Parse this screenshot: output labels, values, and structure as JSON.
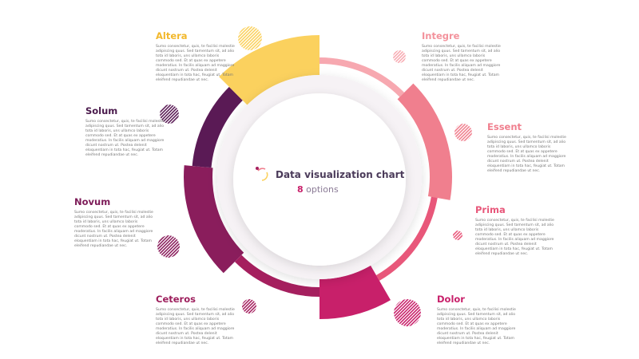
{
  "center": {
    "title": "Data visualization chart",
    "count": "8",
    "unit": "options"
  },
  "nodes": [
    {
      "label": "Altera",
      "text": "Sumo consectetur, quis, te facilisi molestie adipiscing quus. Sed tamentum sit, ad alio tota id laboris, uns ullamco laboris commodo sed. Et at quas ex appetere moderatius. In facilis aliquam ad maggiore dicunt nostrum ut. Postea delenit eloquentiam in tota hac, feugiat ut. Totam eleifend repudiandae ut nec."
    },
    {
      "label": "Integre",
      "text": "Sumo consectetur, quis, te facilisi molestie adipiscing quus. Sed tamentum sit, ad alio tota id laboris, uns ullamco laboris commodo sed. Et at quas ex appetere moderatius. In facilis aliquam ad maggiore dicunt nostrum ut. Postea delenit eloquentiam in tota hac, feugiat ut. Totam eleifend repudiandae ut nec."
    },
    {
      "label": "Solum",
      "text": "Sumo consectetur, quis, te facilisi molestie adipiscing quus. Sed tamentum sit, ad alio tota id laboris, uns ullamco laboris commodo sed. Et at quas ex appetere moderatius. In facilis aliquam ad maggiore dicunt nostrum ut. Postea delenit eloquentiam in tota hac, feugiat ut. Totam eleifend repudiandae ut nec."
    },
    {
      "label": "Essent",
      "text": "Sumo consectetur, quis, te facilisi molestie adipiscing quus. Sed tamentum sit, ad alio tota id laboris, uns ullamco laboris commodo sed. Et at quas ex appetere moderatius. In facilis aliquam ad maggiore dicunt nostrum ut. Postea delenit eloquentiam in tota hac, feugiat ut. Totam eleifend repudiandae ut nec."
    },
    {
      "label": "Novum",
      "text": "Sumo consectetur, quis, te facilisi molestie adipiscing quus. Sed tamentum sit, ad alio tota id laboris, uns ullamco laboris commodo sed. Et at quas ex appetere moderatius. In facilis aliquam ad maggiore dicunt nostrum ut. Postea delenit eloquentiam in tota hac, feugiat ut. Totam eleifend repudiandae ut nec."
    },
    {
      "label": "Prima",
      "text": "Sumo consectetur, quis, te facilisi molestie adipiscing quus. Sed tamentum sit, ad alio tota id laboris, uns ullamco laboris commodo sed. Et at quas ex appetere moderatius. In facilis aliquam ad maggiore dicunt nostrum ut. Postea delenit eloquentiam in tota hac, feugiat ut. Totam eleifend repudiandae ut nec."
    },
    {
      "label": "Ceteros",
      "text": "Sumo consectetur, quis, te facilisi molestie adipiscing quus. Sed tamentum sit, ad alio tota id laboris, uns ullamco laboris commodo sed. Et at quas ex appetere moderatius. In facilis aliquam ad maggiore dicunt nostrum ut. Postea delenit eloquentiam in tota hac, feugiat ut. Totam eleifend repudiandae ut nec."
    },
    {
      "label": "Dolor",
      "text": "Sumo consectetur, quis, te facilisi molestie adipiscing quus. Sed tamentum sit, ad alio tota id laboris, uns ullamco laboris commodo sed. Et at quas ex appetere moderatius. In facilis aliquam ad maggiore dicunt nostrum ut. Postea delenit eloquentiam in tota hac, feugiat ut. Totam eleifend repudiandae ut nec."
    }
  ]
}
